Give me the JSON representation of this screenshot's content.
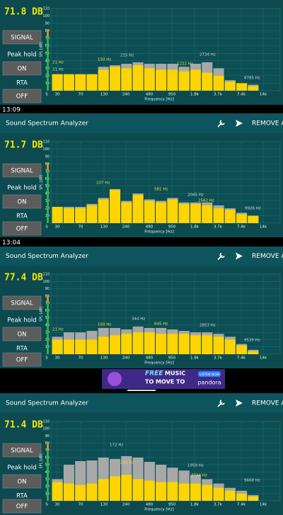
{
  "app_bar": {
    "title": "Sound Spectrum Analyzer",
    "action": "REMOVE AD"
  },
  "status_times": [
    "13:09",
    "13:04"
  ],
  "controls": {
    "signal": "SIGNAL",
    "peak_hold": "Peak hold",
    "rta": "RTA"
  },
  "axis": {
    "ylabel": "SPL [dB]",
    "xlabel": "Frequency [Hz]",
    "ylim": [
      0,
      110
    ],
    "yticks": [
      10,
      20,
      30,
      40,
      50,
      60,
      70,
      80,
      90,
      100,
      110
    ],
    "x_labels": [
      "S",
      "30",
      "70",
      "130",
      "240",
      "480",
      "950",
      "1.8k",
      "3.7k",
      "7.4k",
      "14k"
    ]
  },
  "bar_color": "#ffd400",
  "peak_color": "#a8a8a8",
  "panels": [
    {
      "reading": "71.8 DB",
      "peak_hold_state": "ON",
      "rta_state": "OFF",
      "peak": [
        22,
        22,
        22,
        22,
        32,
        34,
        36,
        38,
        36,
        36,
        36,
        32,
        36,
        38,
        30,
        14,
        10,
        8
      ],
      "current": [
        22,
        22,
        22,
        22,
        28,
        32,
        30,
        34,
        30,
        28,
        28,
        26,
        28,
        24,
        20,
        12,
        10,
        6
      ],
      "annotations": [
        {
          "text": "21 Hz",
          "color": "#e6e63c"
        },
        {
          "text": "21 Hz",
          "color": "#d8d8d8"
        },
        {
          "text": "150 Hz",
          "color": "#e6e63c"
        },
        {
          "text": "215 Hz",
          "color": "#d8d8d8"
        },
        {
          "text": "1222 Hz",
          "color": "#e6e63c"
        },
        {
          "text": "2734 Hz",
          "color": "#d8d8d8"
        },
        {
          "text": "8785 Hz",
          "color": "#d8d8d8"
        }
      ]
    },
    {
      "reading": "71.7 DB",
      "peak_hold_state": "ON",
      "rta_state": "OFF",
      "peak": [
        22,
        22,
        22,
        26,
        34,
        46,
        30,
        40,
        32,
        30,
        34,
        28,
        28,
        28,
        24,
        20,
        14,
        10
      ],
      "current": [
        22,
        20,
        20,
        24,
        32,
        45,
        28,
        38,
        30,
        28,
        32,
        26,
        26,
        24,
        20,
        18,
        12,
        10
      ],
      "annotations": [
        {
          "text": "107 Hz",
          "color": "#e6e63c"
        },
        {
          "text": "581 Hz",
          "color": "#e6e63c"
        },
        {
          "text": "2045 Hz",
          "color": "#d8d8d8"
        },
        {
          "text": "2562 Hz",
          "color": "#e6e63c"
        },
        {
          "text": "9926 Hz",
          "color": "#d8d8d8"
        }
      ]
    },
    {
      "reading": "77.4 DB",
      "peak_hold_state": "ON",
      "rta_state": "OFF",
      "peak": [
        24,
        30,
        30,
        32,
        36,
        36,
        34,
        38,
        36,
        36,
        34,
        32,
        30,
        30,
        28,
        24,
        14,
        6
      ],
      "current": [
        20,
        20,
        20,
        20,
        24,
        26,
        28,
        30,
        30,
        28,
        28,
        28,
        26,
        26,
        24,
        20,
        12,
        4
      ],
      "annotations": [
        {
          "text": "21 Hz",
          "color": "#e6e63c"
        },
        {
          "text": "150 Hz",
          "color": "#e6e63c"
        },
        {
          "text": "344 Hz",
          "color": "#d8d8d8"
        },
        {
          "text": "645 Hz",
          "color": "#e6e63c"
        },
        {
          "text": "2853 Hz",
          "color": "#d8d8d8"
        },
        {
          "text": "9539 Hz",
          "color": "#d8d8d8"
        }
      ]
    },
    {
      "reading": "71.4 DB",
      "peak_hold_state": "ON",
      "rta_state": "OFF",
      "peak": [
        30,
        50,
        55,
        56,
        60,
        58,
        62,
        60,
        54,
        50,
        46,
        42,
        36,
        30,
        24,
        18,
        14,
        8
      ],
      "current": [
        26,
        24,
        22,
        24,
        30,
        34,
        36,
        30,
        28,
        26,
        26,
        24,
        24,
        22,
        18,
        14,
        10,
        6
      ],
      "annotations": [
        {
          "text": "172 Hz",
          "color": "#d8d8d8"
        },
        {
          "text": "215 Hz",
          "color": "#e6e63c"
        },
        {
          "text": "1959 Hz",
          "color": "#d8d8d8"
        },
        {
          "text": "2734 Hz",
          "color": "#e6e63c"
        },
        {
          "text": "9668 Hz",
          "color": "#d8d8d8"
        }
      ]
    }
  ],
  "ad": {
    "line1": "FREE",
    "line2": "MUSIC",
    "line3": "TO MOVE TO",
    "brand": "pandora",
    "cta": "LISTEN NOW"
  }
}
